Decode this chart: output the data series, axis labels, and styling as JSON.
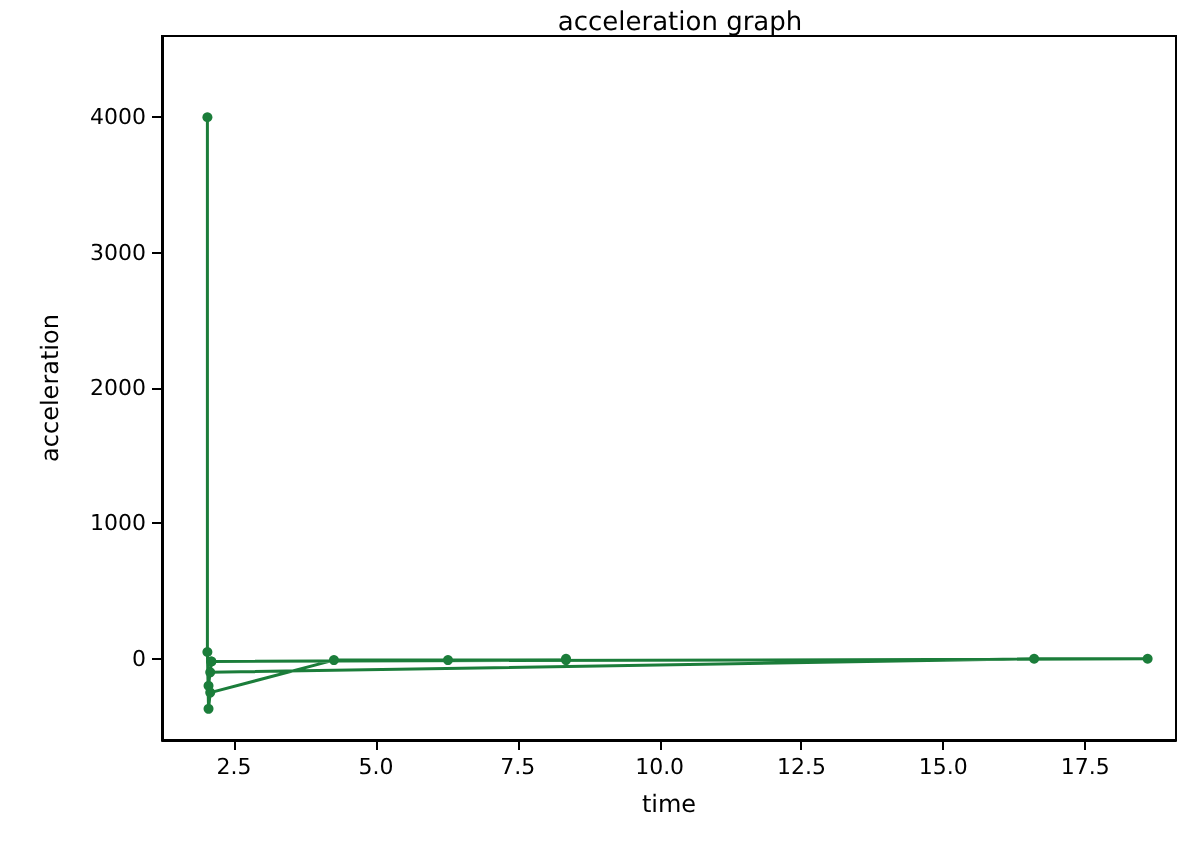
{
  "chart_data": {
    "type": "line",
    "title": "acceleration graph",
    "xlabel": "time",
    "ylabel": "acceleration",
    "x": [
      2.03,
      2.03,
      2.05,
      2.08,
      4.26,
      6.27,
      8.35,
      8.35,
      2.1,
      2.08,
      16.6,
      18.6,
      2.1,
      2.05
    ],
    "series": [
      {
        "color": "#1b7d3a",
        "values": [
          4000,
          50,
          -370,
          -250,
          -10,
          -10,
          -10,
          0,
          -20,
          -100,
          0,
          0,
          -20,
          -200
        ]
      }
    ],
    "xlim": [
      1.23,
      19.1
    ],
    "xticks": [
      {
        "value": 2.5,
        "label": "2.5"
      },
      {
        "value": 5,
        "label": "5.0"
      },
      {
        "value": 7.5,
        "label": "7.5"
      },
      {
        "value": 10,
        "label": "10.0"
      },
      {
        "value": 12.5,
        "label": "12.5"
      },
      {
        "value": 15,
        "label": "15.0"
      },
      {
        "value": 17.5,
        "label": "17.5"
      }
    ],
    "ylim": [
      -600,
      4600
    ],
    "yticks": [
      0,
      1000,
      2000,
      3000,
      4000
    ],
    "grid": false,
    "marker": "circle",
    "line_style": "solid"
  }
}
